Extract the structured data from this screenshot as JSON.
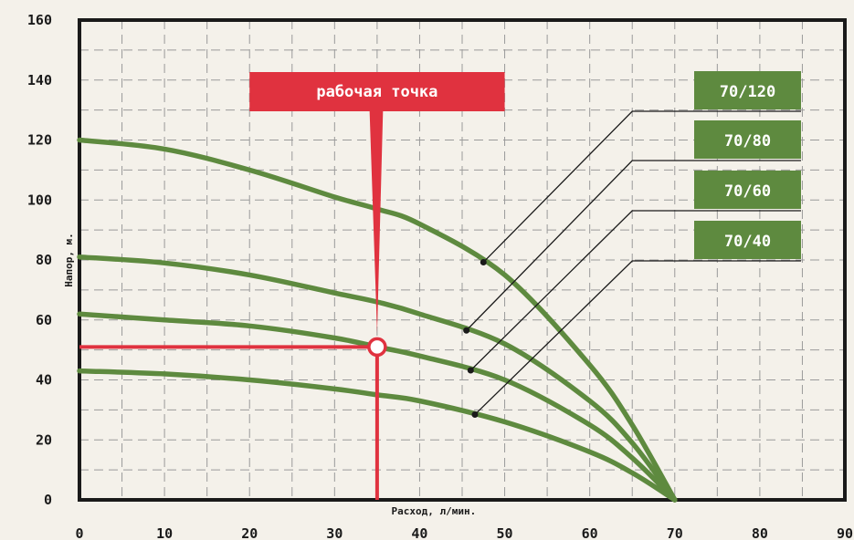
{
  "chart_data": {
    "type": "line",
    "xlabel": "Расход, л/мин.",
    "ylabel": "Напор, м.",
    "xlim": [
      0,
      90
    ],
    "ylim": [
      0,
      160
    ],
    "x_ticks": [
      "0",
      "10",
      "20",
      "30",
      "40",
      "50",
      "60",
      "70",
      "80",
      "90"
    ],
    "y_ticks": [
      "0",
      "20",
      "40",
      "60",
      "80",
      "100",
      "120",
      "140",
      "160"
    ],
    "grid": true,
    "series": [
      {
        "name": "70/120",
        "x": [
          0,
          10,
          20,
          30,
          35,
          40,
          50,
          60,
          65,
          70
        ],
        "y": [
          120,
          117,
          110,
          101,
          97,
          92,
          75,
          45,
          25,
          0
        ]
      },
      {
        "name": "70/80",
        "x": [
          0,
          10,
          20,
          30,
          35,
          40,
          50,
          60,
          65,
          70
        ],
        "y": [
          81,
          79,
          75,
          69,
          66,
          62,
          52,
          33,
          19,
          0
        ]
      },
      {
        "name": "70/60",
        "x": [
          0,
          10,
          20,
          30,
          35,
          40,
          50,
          60,
          65,
          70
        ],
        "y": [
          62,
          60,
          58,
          54,
          51,
          48,
          40,
          25,
          14,
          0
        ]
      },
      {
        "name": "70/40",
        "x": [
          0,
          10,
          20,
          30,
          35,
          40,
          50,
          60,
          65,
          70
        ],
        "y": [
          43,
          42,
          40,
          37,
          35,
          33,
          26,
          16,
          9,
          0
        ]
      }
    ],
    "annotations": [
      {
        "text": "рабочая точка",
        "x": 35,
        "y": 51
      }
    ],
    "colors": {
      "curve": "#5e8a3f",
      "label_box": "#5e8a3f",
      "working_point": "#e0323f",
      "grid": "#9a9a9a",
      "background": "#f4f1ea"
    }
  }
}
